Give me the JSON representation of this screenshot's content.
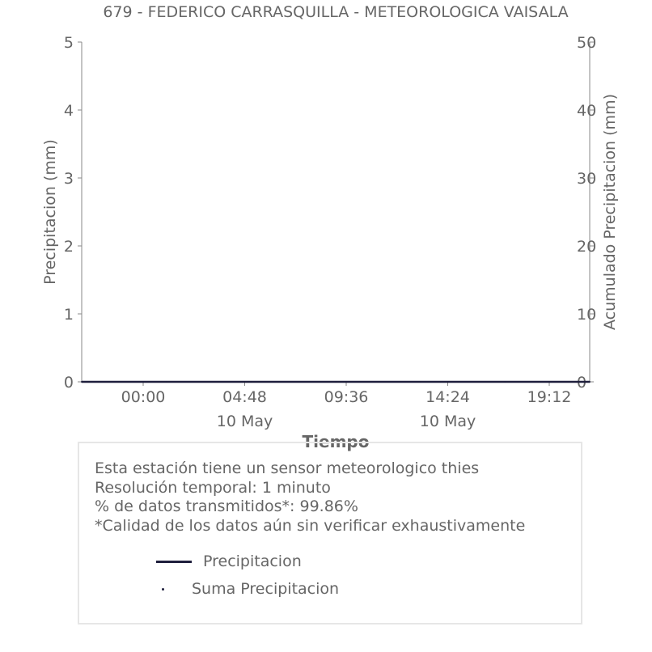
{
  "chart_data": {
    "type": "line",
    "title": "679 - FEDERICO CARRASQUILLA - METEOROLOGICA VAISALA",
    "xlabel": "Tiempo",
    "ylabel": "Precipitacion (mm)",
    "y2label": "Acumulado Precipitacion (mm)",
    "ylim": [
      0,
      5
    ],
    "y2lim": [
      0,
      50
    ],
    "yticks": [
      "0",
      "1",
      "2",
      "3",
      "4",
      "5"
    ],
    "y2ticks": [
      "0",
      "10",
      "20",
      "30",
      "40",
      "50"
    ],
    "x_ticks": [
      {
        "time": "00:00",
        "date": ""
      },
      {
        "time": "04:48",
        "date": "10 May"
      },
      {
        "time": "09:36",
        "date": ""
      },
      {
        "time": "14:24",
        "date": "10 May"
      },
      {
        "time": "19:12",
        "date": ""
      }
    ],
    "x": [
      "09 May 20:00",
      "00:00",
      "04:48",
      "09:36",
      "14:24",
      "19:12",
      "20:24"
    ],
    "series": [
      {
        "name": "Precipitacion",
        "type": "line",
        "color": "#1f1f3d",
        "values": [
          0,
          0,
          0,
          0,
          0,
          0,
          0
        ]
      },
      {
        "name": "Suma Precipitacion",
        "type": "scatter",
        "color": "#1f1f3d",
        "values": [
          0,
          0,
          0,
          0,
          0,
          0,
          0
        ]
      }
    ],
    "grid": false,
    "legend_position": "bottom"
  },
  "info": {
    "line1": "Esta estación tiene un sensor meteorologico thies",
    "line2": "Resolución temporal: 1 minuto",
    "line3": "% de datos transmitidos*: 99.86%",
    "line4": "*Calidad de los datos aún sin verificar exhaustivamente"
  },
  "legend": {
    "line_label": "Precipitacion",
    "dot_label": "Suma Precipitacion"
  }
}
